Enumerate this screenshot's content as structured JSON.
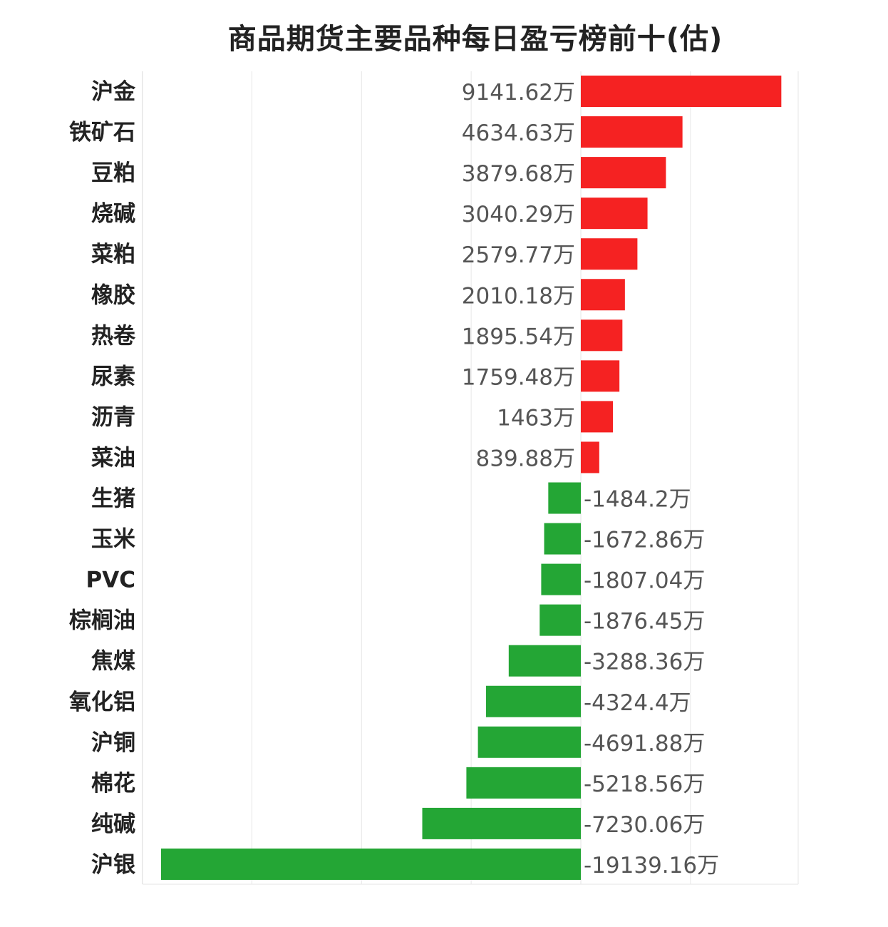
{
  "chart_data": {
    "type": "bar",
    "orientation": "horizontal",
    "title": "商品期货主要品种每日盈亏榜前十(估)",
    "unit_suffix": "万",
    "categories": [
      "沪金",
      "铁矿石",
      "豆粕",
      "烧碱",
      "菜粕",
      "橡胶",
      "热卷",
      "尿素",
      "沥青",
      "菜油",
      "生猪",
      "玉米",
      "PVC",
      "棕榈油",
      "焦煤",
      "氧化铝",
      "沪铜",
      "棉花",
      "纯碱",
      "沪银"
    ],
    "values": [
      9141.62,
      4634.63,
      3879.68,
      3040.29,
      2579.77,
      2010.18,
      1895.54,
      1759.48,
      1463,
      839.88,
      -1484.2,
      -1672.86,
      -1807.04,
      -1876.45,
      -3288.36,
      -4324.4,
      -4691.88,
      -5218.56,
      -7230.06,
      -19139.16
    ],
    "value_labels": [
      "9141.62万",
      "4634.63万",
      "3879.68万",
      "3040.29万",
      "2579.77万",
      "2010.18万",
      "1895.54万",
      "1759.48万",
      "1463万",
      "839.88万",
      "-1484.2万",
      "-1672.86万",
      "-1807.04万",
      "-1876.45万",
      "-3288.36万",
      "-4324.4万",
      "-4691.88万",
      "-5218.56万",
      "-7230.06万",
      "-19139.16万"
    ],
    "xlim": [
      -20000,
      10000
    ],
    "grid": true,
    "colors": {
      "positive": "#f52222",
      "negative": "#24a635"
    }
  }
}
